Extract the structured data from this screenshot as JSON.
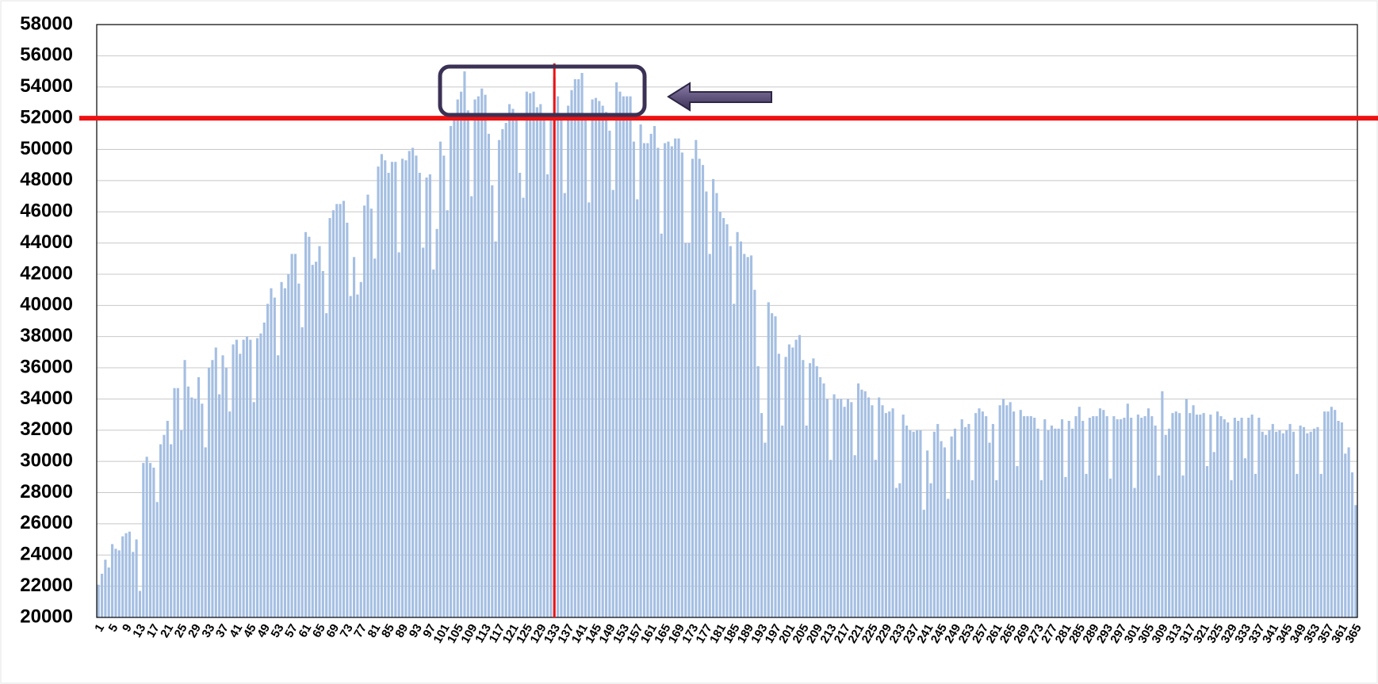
{
  "chart_data": {
    "type": "bar",
    "categories": [
      1,
      null,
      null,
      null,
      5,
      null,
      null,
      null,
      9,
      null,
      null,
      null,
      13,
      null,
      null,
      null,
      17,
      null,
      null,
      null,
      21,
      null,
      null,
      null,
      25,
      null,
      null,
      null,
      29,
      null,
      null,
      null,
      33,
      null,
      null,
      null,
      37,
      null,
      null,
      null,
      41,
      null,
      null,
      null,
      45,
      null,
      null,
      null,
      49,
      null,
      null,
      null,
      53,
      null,
      null,
      null,
      57,
      null,
      null,
      null,
      61,
      null,
      null,
      null,
      65,
      null,
      null,
      null,
      69,
      null,
      null,
      null,
      73,
      null,
      null,
      null,
      77,
      null,
      null,
      null,
      81,
      null,
      null,
      null,
      85,
      null,
      null,
      null,
      89,
      null,
      null,
      null,
      93,
      null,
      null,
      null,
      97,
      null,
      null,
      null,
      101,
      null,
      null,
      null,
      105,
      null,
      null,
      null,
      109,
      null,
      null,
      null,
      113,
      null,
      null,
      null,
      117,
      null,
      null,
      null,
      121,
      null,
      null,
      null,
      125,
      null,
      null,
      null,
      129,
      null,
      null,
      null,
      133,
      null,
      null,
      null,
      137,
      null,
      null,
      null,
      141,
      null,
      null,
      null,
      145,
      null,
      null,
      null,
      149,
      null,
      null,
      null,
      153,
      null,
      null,
      null,
      157,
      null,
      null,
      null,
      161,
      null,
      null,
      null,
      165,
      null,
      null,
      null,
      169,
      null,
      null,
      null,
      173,
      null,
      null,
      null,
      177,
      null,
      null,
      null,
      181,
      null,
      null,
      null,
      185,
      null,
      null,
      null,
      189,
      null,
      null,
      null,
      193,
      null,
      null,
      null,
      197,
      null,
      null,
      null,
      201,
      null,
      null,
      null,
      205,
      null,
      null,
      null,
      209,
      null,
      null,
      null,
      213,
      null,
      null,
      null,
      217,
      null,
      null,
      null,
      221,
      null,
      null,
      null,
      225,
      null,
      null,
      null,
      229,
      null,
      null,
      null,
      233,
      null,
      null,
      null,
      237,
      null,
      null,
      null,
      241,
      null,
      null,
      null,
      245,
      null,
      null,
      null,
      249,
      null,
      null,
      null,
      253,
      null,
      null,
      null,
      257,
      null,
      null,
      null,
      261,
      null,
      null,
      null,
      265,
      null,
      null,
      null,
      269,
      null,
      null,
      null,
      273,
      null,
      null,
      null,
      277,
      null,
      null,
      null,
      281,
      null,
      null,
      null,
      285,
      null,
      null,
      null,
      289,
      null,
      null,
      null,
      293,
      null,
      null,
      null,
      297,
      null,
      null,
      null,
      301,
      null,
      null,
      null,
      305,
      null,
      null,
      null,
      309,
      null,
      null,
      null,
      313,
      null,
      null,
      null,
      317,
      null,
      null,
      null,
      321,
      null,
      null,
      null,
      325,
      null,
      null,
      null,
      329,
      null,
      null,
      null,
      333,
      null,
      null,
      null,
      337,
      null,
      null,
      null,
      341,
      null,
      null,
      null,
      345,
      null,
      null,
      null,
      349,
      null,
      null,
      null,
      353,
      null,
      null,
      null,
      357,
      null,
      null,
      null,
      361,
      null,
      null,
      null,
      365
    ],
    "values": [
      22100,
      22800,
      23700,
      23200,
      24700,
      24400,
      24300,
      25200,
      25400,
      25500,
      24200,
      25000,
      21700,
      29900,
      30300,
      29900,
      29600,
      27400,
      31100,
      31700,
      32600,
      31100,
      34700,
      34700,
      32000,
      36500,
      34800,
      34100,
      34000,
      35400,
      33700,
      30900,
      36000,
      36500,
      37300,
      34300,
      36800,
      36000,
      33200,
      37500,
      37800,
      36900,
      37800,
      38000,
      37800,
      33800,
      37900,
      38200,
      38900,
      40100,
      41100,
      40500,
      36800,
      41500,
      41100,
      42000,
      43300,
      43300,
      41400,
      38600,
      44700,
      44400,
      42600,
      42800,
      43800,
      42200,
      39500,
      45600,
      46100,
      46500,
      46500,
      46700,
      45300,
      40600,
      43100,
      40700,
      41500,
      46400,
      47100,
      46200,
      43000,
      48900,
      49700,
      49300,
      48500,
      49200,
      49200,
      43400,
      49400,
      49300,
      49900,
      50100,
      49600,
      48500,
      43700,
      48200,
      48400,
      42300,
      44900,
      50500,
      49600,
      46100,
      51500,
      52300,
      53200,
      53700,
      55000,
      52500,
      47000,
      53200,
      53400,
      53900,
      53500,
      51000,
      47700,
      44100,
      50600,
      51300,
      51700,
      52900,
      52600,
      52200,
      48500,
      46900,
      53700,
      53600,
      53700,
      52700,
      52900,
      52000,
      48400,
      52300,
      54600,
      53400,
      51900,
      47200,
      52800,
      53800,
      54500,
      54500,
      54900,
      52000,
      46600,
      53200,
      53300,
      53100,
      52800,
      52400,
      51200,
      47400,
      54300,
      53700,
      53400,
      53400,
      53400,
      50500,
      46800,
      51600,
      50400,
      50400,
      51000,
      51500,
      50100,
      44600,
      50400,
      50500,
      50200,
      50700,
      50700,
      49800,
      44000,
      44000,
      49400,
      50600,
      49400,
      49000,
      47300,
      43300,
      48100,
      47200,
      46000,
      45600,
      45200,
      43800,
      40100,
      44700,
      44100,
      43300,
      43100,
      43200,
      41000,
      36100,
      33100,
      31200,
      40200,
      39500,
      39300,
      36900,
      32300,
      36700,
      37500,
      37300,
      37800,
      38100,
      36500,
      32300,
      36300,
      36600,
      36100,
      35400,
      35000,
      34000,
      30100,
      34300,
      34000,
      34000,
      33500,
      34000,
      33800,
      30400,
      35000,
      34600,
      34500,
      34100,
      33600,
      30100,
      34100,
      33600,
      33100,
      33200,
      33400,
      28300,
      28600,
      33000,
      32300,
      32000,
      31900,
      32000,
      32000,
      26900,
      30700,
      28600,
      31900,
      32400,
      31300,
      30900,
      27600,
      31600,
      32100,
      30100,
      32700,
      32200,
      32400,
      28800,
      33100,
      33400,
      33200,
      32900,
      31200,
      32400,
      28800,
      33600,
      34000,
      33600,
      33800,
      33200,
      29700,
      33300,
      32900,
      32900,
      32900,
      32800,
      32100,
      28800,
      32700,
      32000,
      32300,
      32100,
      32100,
      32700,
      29000,
      32600,
      32100,
      32900,
      33500,
      32600,
      29200,
      32800,
      32900,
      32900,
      33400,
      33300,
      32900,
      28900,
      32900,
      32700,
      32700,
      32800,
      33700,
      32800,
      28300,
      33000,
      32800,
      32900,
      33400,
      32900,
      32300,
      29100,
      34500,
      31700,
      32100,
      33100,
      33200,
      33100,
      29100,
      34000,
      33100,
      33600,
      33000,
      33000,
      33100,
      29700,
      33000,
      30600,
      33200,
      32900,
      32700,
      32500,
      28800,
      32800,
      32600,
      32800,
      30200,
      32800,
      33000,
      29200,
      32800,
      31900,
      31700,
      32000,
      32400,
      31900,
      32000,
      31800,
      32000,
      32400,
      31900,
      29200,
      32300,
      32200,
      31800,
      31900,
      32100,
      32200,
      29200,
      33200,
      33200,
      33500,
      33300,
      32600,
      32500,
      30500,
      30900,
      29300,
      27200
    ],
    "color": "#a5bfe2",
    "ylim": [
      20000,
      58000
    ],
    "yticks": [
      20000,
      22000,
      24000,
      26000,
      28000,
      30000,
      32000,
      34000,
      36000,
      38000,
      40000,
      42000,
      44000,
      46000,
      48000,
      50000,
      52000,
      54000,
      56000,
      58000
    ],
    "grid": true,
    "reference_lines": {
      "y": 52000,
      "x": 133,
      "color": "#ee1111"
    }
  }
}
